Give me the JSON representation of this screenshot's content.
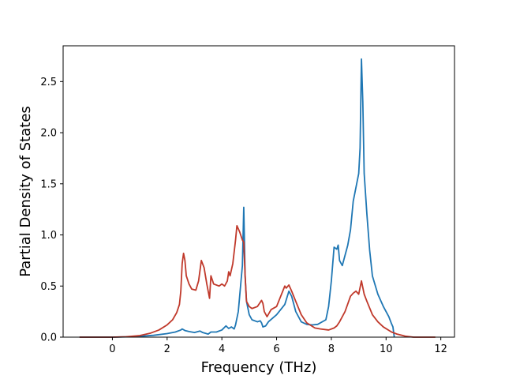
{
  "chart_data": {
    "type": "line",
    "title": "",
    "xlabel": "Frequency (THz)",
    "ylabel": "Partial Density of States",
    "xlim": [
      -1.8,
      12.5
    ],
    "ylim": [
      0.0,
      2.85
    ],
    "xticks": [
      0,
      2,
      4,
      6,
      8,
      10,
      12
    ],
    "xtick_labels": [
      "0",
      "2",
      "4",
      "6",
      "8",
      "10",
      "12"
    ],
    "yticks": [
      0.0,
      0.5,
      1.0,
      1.5,
      2.0,
      2.5
    ],
    "ytick_labels": [
      "0.0",
      "0.5",
      "1.0",
      "1.5",
      "2.0",
      "2.5"
    ],
    "grid": false,
    "legend": "none",
    "series": [
      {
        "color": "#1f77b4",
        "points": [
          [
            -1.2,
            0.0
          ],
          [
            0.0,
            0.0
          ],
          [
            0.5,
            0.003
          ],
          [
            1.0,
            0.008
          ],
          [
            1.5,
            0.018
          ],
          [
            2.0,
            0.035
          ],
          [
            2.3,
            0.05
          ],
          [
            2.5,
            0.07
          ],
          [
            2.55,
            0.08
          ],
          [
            2.65,
            0.065
          ],
          [
            2.8,
            0.055
          ],
          [
            3.0,
            0.045
          ],
          [
            3.2,
            0.06
          ],
          [
            3.3,
            0.045
          ],
          [
            3.5,
            0.03
          ],
          [
            3.6,
            0.05
          ],
          [
            3.8,
            0.05
          ],
          [
            4.0,
            0.07
          ],
          [
            4.15,
            0.11
          ],
          [
            4.25,
            0.085
          ],
          [
            4.35,
            0.1
          ],
          [
            4.45,
            0.08
          ],
          [
            4.5,
            0.12
          ],
          [
            4.6,
            0.25
          ],
          [
            4.7,
            0.55
          ],
          [
            4.75,
            0.7
          ],
          [
            4.8,
            1.27
          ],
          [
            4.85,
            0.6
          ],
          [
            4.9,
            0.35
          ],
          [
            5.0,
            0.22
          ],
          [
            5.1,
            0.17
          ],
          [
            5.3,
            0.15
          ],
          [
            5.4,
            0.16
          ],
          [
            5.45,
            0.14
          ],
          [
            5.5,
            0.1
          ],
          [
            5.6,
            0.11
          ],
          [
            5.7,
            0.15
          ],
          [
            6.0,
            0.22
          ],
          [
            6.3,
            0.32
          ],
          [
            6.45,
            0.45
          ],
          [
            6.55,
            0.4
          ],
          [
            6.7,
            0.25
          ],
          [
            6.9,
            0.15
          ],
          [
            7.1,
            0.125
          ],
          [
            7.3,
            0.12
          ],
          [
            7.5,
            0.125
          ],
          [
            7.8,
            0.17
          ],
          [
            7.9,
            0.3
          ],
          [
            8.0,
            0.55
          ],
          [
            8.1,
            0.88
          ],
          [
            8.2,
            0.86
          ],
          [
            8.25,
            0.9
          ],
          [
            8.3,
            0.75
          ],
          [
            8.4,
            0.7
          ],
          [
            8.6,
            0.9
          ],
          [
            8.7,
            1.05
          ],
          [
            8.8,
            1.33
          ],
          [
            9.0,
            1.6
          ],
          [
            9.05,
            1.85
          ],
          [
            9.1,
            2.72
          ],
          [
            9.15,
            2.3
          ],
          [
            9.2,
            1.6
          ],
          [
            9.3,
            1.2
          ],
          [
            9.4,
            0.85
          ],
          [
            9.5,
            0.6
          ],
          [
            9.7,
            0.42
          ],
          [
            9.9,
            0.3
          ],
          [
            10.1,
            0.2
          ],
          [
            10.2,
            0.13
          ],
          [
            10.25,
            0.1
          ],
          [
            10.3,
            0.0
          ]
        ]
      },
      {
        "color": "#c0392b",
        "points": [
          [
            -1.2,
            0.0
          ],
          [
            0.0,
            0.0
          ],
          [
            0.5,
            0.004
          ],
          [
            1.0,
            0.015
          ],
          [
            1.4,
            0.04
          ],
          [
            1.7,
            0.07
          ],
          [
            2.0,
            0.12
          ],
          [
            2.2,
            0.17
          ],
          [
            2.35,
            0.24
          ],
          [
            2.45,
            0.32
          ],
          [
            2.5,
            0.45
          ],
          [
            2.55,
            0.72
          ],
          [
            2.6,
            0.82
          ],
          [
            2.65,
            0.75
          ],
          [
            2.7,
            0.6
          ],
          [
            2.8,
            0.52
          ],
          [
            2.9,
            0.47
          ],
          [
            3.05,
            0.46
          ],
          [
            3.15,
            0.55
          ],
          [
            3.25,
            0.75
          ],
          [
            3.35,
            0.68
          ],
          [
            3.45,
            0.52
          ],
          [
            3.5,
            0.45
          ],
          [
            3.55,
            0.38
          ],
          [
            3.6,
            0.6
          ],
          [
            3.7,
            0.52
          ],
          [
            3.9,
            0.5
          ],
          [
            4.0,
            0.52
          ],
          [
            4.1,
            0.5
          ],
          [
            4.2,
            0.55
          ],
          [
            4.25,
            0.64
          ],
          [
            4.3,
            0.6
          ],
          [
            4.4,
            0.72
          ],
          [
            4.5,
            0.95
          ],
          [
            4.55,
            1.09
          ],
          [
            4.65,
            1.03
          ],
          [
            4.75,
            0.95
          ],
          [
            4.8,
            0.93
          ],
          [
            4.85,
            0.6
          ],
          [
            4.9,
            0.35
          ],
          [
            5.0,
            0.3
          ],
          [
            5.1,
            0.28
          ],
          [
            5.3,
            0.3
          ],
          [
            5.45,
            0.36
          ],
          [
            5.5,
            0.33
          ],
          [
            5.55,
            0.25
          ],
          [
            5.65,
            0.2
          ],
          [
            5.8,
            0.27
          ],
          [
            6.0,
            0.3
          ],
          [
            6.15,
            0.4
          ],
          [
            6.3,
            0.5
          ],
          [
            6.35,
            0.48
          ],
          [
            6.45,
            0.51
          ],
          [
            6.55,
            0.45
          ],
          [
            6.7,
            0.35
          ],
          [
            6.9,
            0.22
          ],
          [
            7.1,
            0.14
          ],
          [
            7.4,
            0.09
          ],
          [
            7.6,
            0.08
          ],
          [
            7.9,
            0.07
          ],
          [
            8.1,
            0.09
          ],
          [
            8.2,
            0.11
          ],
          [
            8.3,
            0.15
          ],
          [
            8.5,
            0.25
          ],
          [
            8.7,
            0.4
          ],
          [
            8.8,
            0.43
          ],
          [
            8.9,
            0.45
          ],
          [
            9.0,
            0.42
          ],
          [
            9.1,
            0.55
          ],
          [
            9.2,
            0.42
          ],
          [
            9.3,
            0.35
          ],
          [
            9.5,
            0.22
          ],
          [
            9.7,
            0.15
          ],
          [
            9.9,
            0.1
          ],
          [
            10.2,
            0.05
          ],
          [
            10.4,
            0.03
          ],
          [
            10.7,
            0.01
          ],
          [
            11.0,
            0.0
          ],
          [
            11.8,
            0.0
          ]
        ]
      }
    ]
  }
}
